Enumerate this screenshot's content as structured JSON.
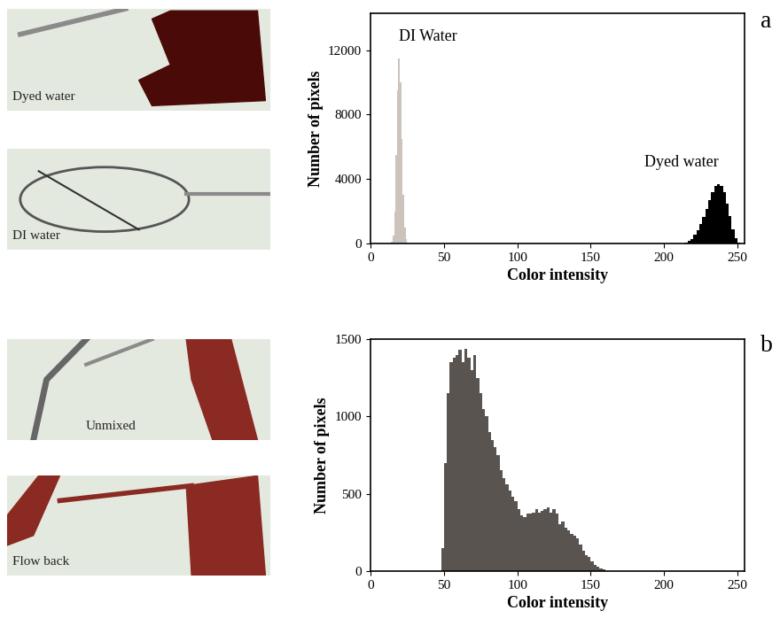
{
  "chart_data": [
    {
      "type": "histogram",
      "panel": "a",
      "photos": [
        "Dyed water",
        "DI water"
      ],
      "xlabel": "Color intensity",
      "ylabel": "Number of pixels",
      "xlim": [
        0,
        255
      ],
      "xticks": [
        0,
        50,
        100,
        150,
        200,
        250
      ],
      "ylim": [
        0,
        14300
      ],
      "yticks": [
        0,
        4000,
        8000,
        12000
      ],
      "series": [
        {
          "name": "DI Water",
          "color": "#cbc3bc",
          "bins": [
            14,
            15,
            16,
            17,
            18,
            19,
            20,
            21,
            22,
            23,
            24,
            25,
            26
          ],
          "counts": [
            100,
            500,
            2000,
            5500,
            9500,
            11500,
            10000,
            6500,
            3000,
            1000,
            300,
            50
          ]
        },
        {
          "name": "Dyed water",
          "color": "#000000",
          "bins": [
            214,
            216,
            218,
            220,
            222,
            224,
            226,
            228,
            230,
            232,
            234,
            236,
            238,
            240,
            242,
            244,
            246,
            248,
            250,
            252
          ],
          "counts": [
            50,
            150,
            300,
            550,
            850,
            1200,
            1650,
            2150,
            2700,
            3200,
            3550,
            3700,
            3600,
            3200,
            2500,
            1700,
            900,
            350,
            80
          ]
        }
      ]
    },
    {
      "type": "histogram",
      "panel": "b",
      "photos": [
        "Unmixed",
        "Flow back"
      ],
      "xlabel": "Color intensity",
      "ylabel": "Number of pixels",
      "xlim": [
        0,
        255
      ],
      "xticks": [
        0,
        50,
        100,
        150,
        200,
        250
      ],
      "ylim": [
        0,
        1500
      ],
      "yticks": [
        0,
        500,
        1000,
        1500
      ],
      "series": [
        {
          "color": "#595450",
          "bins": [
            46,
            48,
            50,
            52,
            54,
            56,
            58,
            60,
            62,
            64,
            66,
            68,
            70,
            72,
            74,
            76,
            78,
            80,
            82,
            84,
            86,
            88,
            90,
            92,
            94,
            96,
            98,
            100,
            102,
            104,
            106,
            108,
            110,
            112,
            114,
            116,
            118,
            120,
            122,
            124,
            126,
            128,
            130,
            132,
            134,
            136,
            138,
            140,
            142,
            144,
            146,
            148,
            150,
            152,
            154,
            156,
            158,
            160,
            162
          ],
          "counts": [
            0,
            150,
            700,
            1150,
            1350,
            1380,
            1400,
            1430,
            1350,
            1440,
            1380,
            1300,
            1400,
            1250,
            1150,
            1050,
            1000,
            900,
            850,
            800,
            750,
            650,
            600,
            560,
            520,
            480,
            450,
            400,
            360,
            350,
            370,
            370,
            380,
            400,
            380,
            390,
            400,
            410,
            380,
            400,
            370,
            300,
            320,
            280,
            260,
            240,
            230,
            210,
            170,
            130,
            100,
            90,
            60,
            40,
            25,
            15,
            8,
            0
          ]
        }
      ]
    }
  ]
}
